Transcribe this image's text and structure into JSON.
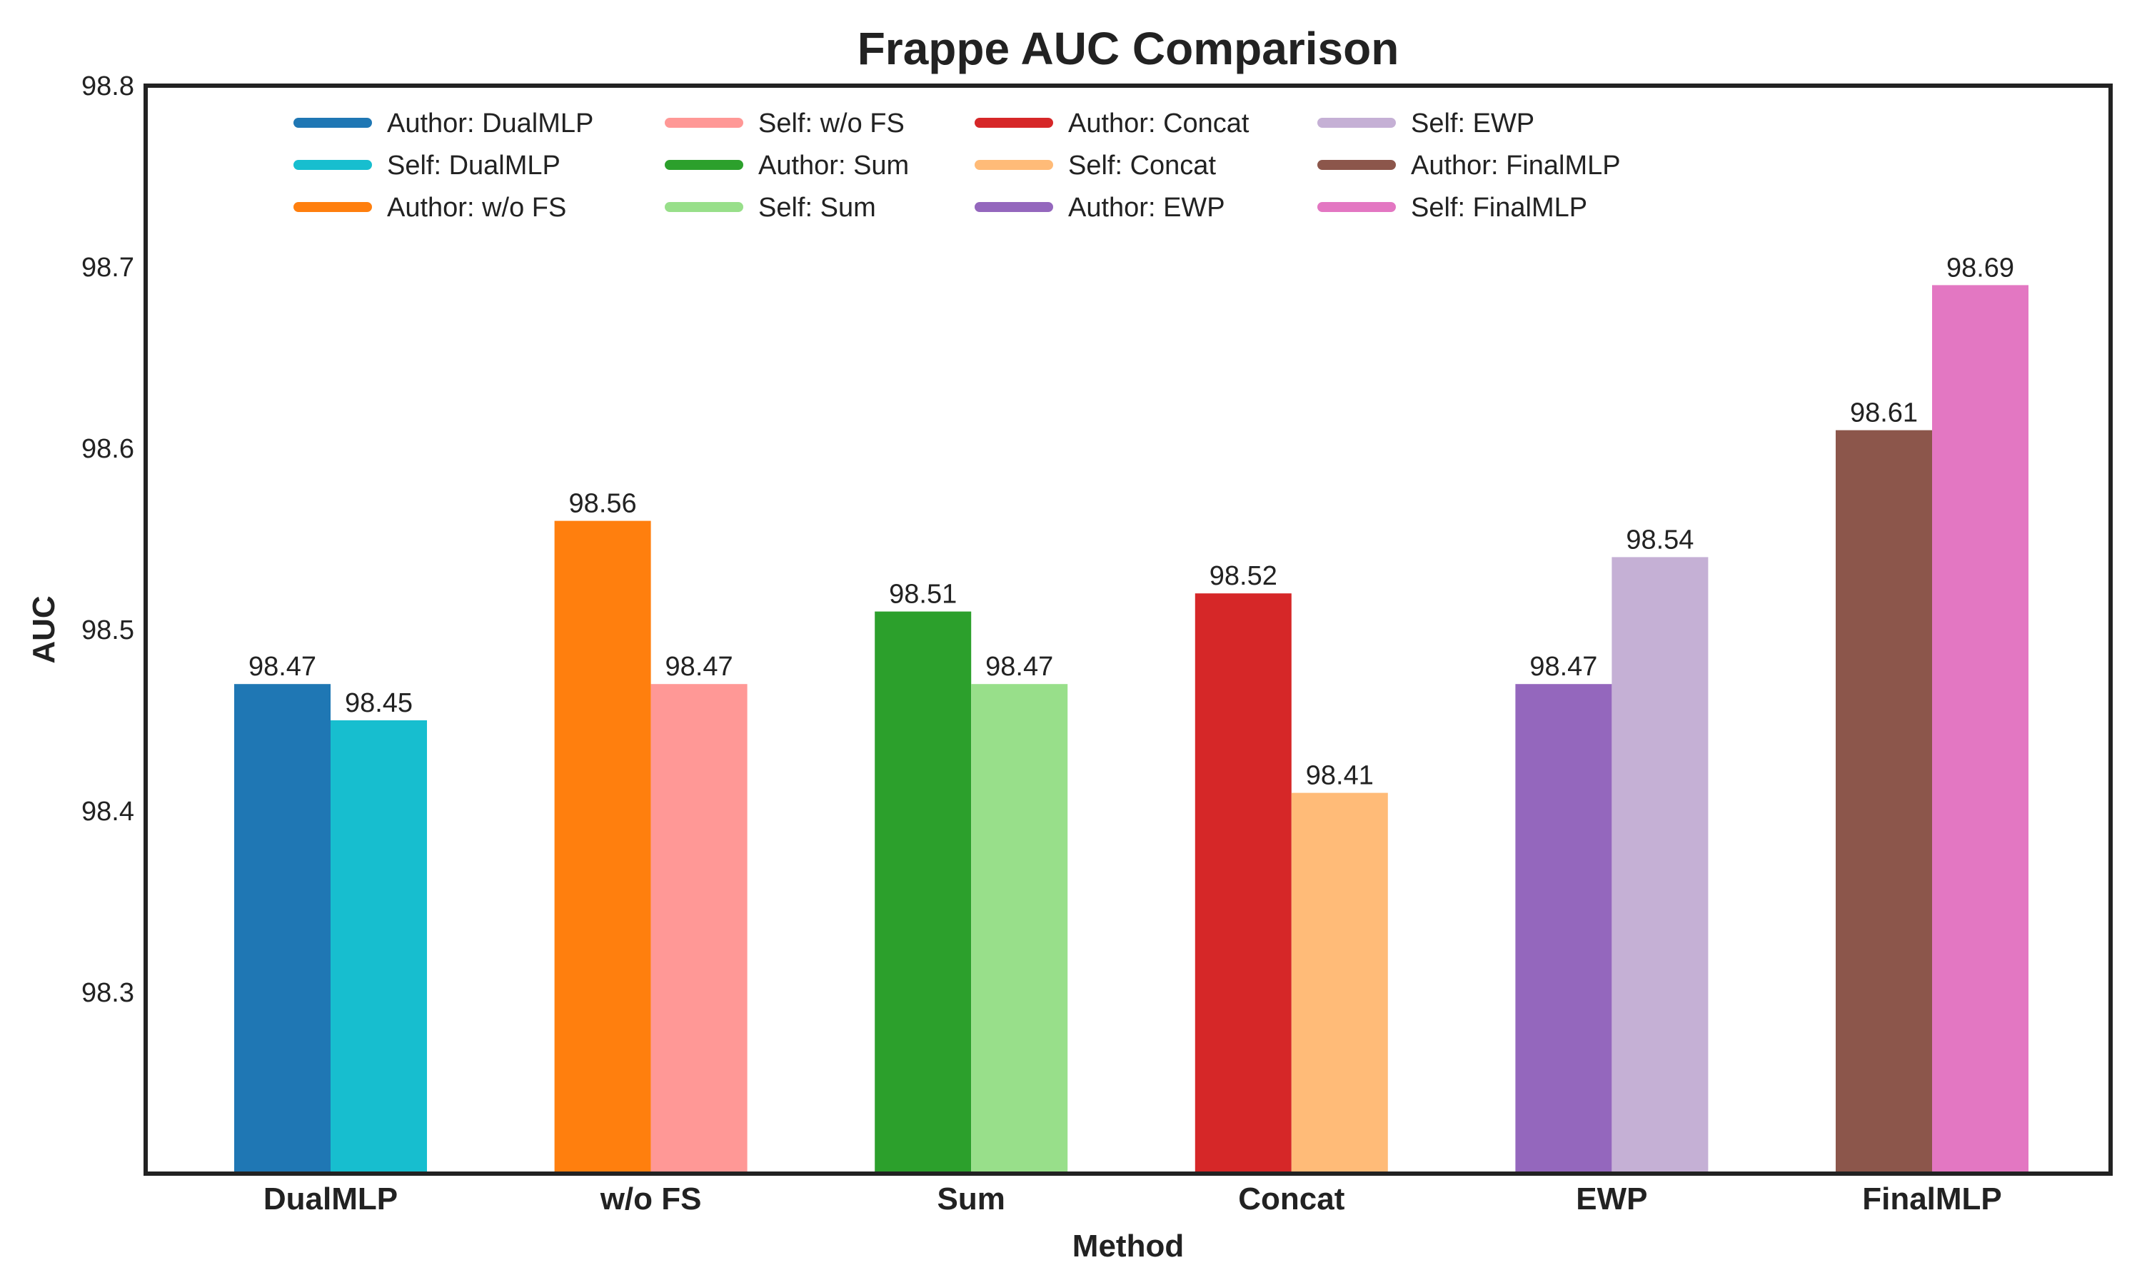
{
  "chart_data": {
    "type": "bar",
    "title": "Frappe AUC Comparison",
    "xlabel": "Method",
    "ylabel": "AUC",
    "ylim": [
      98.2,
      98.8
    ],
    "yticks": [
      "98.3",
      "98.4",
      "98.5",
      "98.6",
      "98.7",
      "98.8"
    ],
    "grid": false,
    "legend_position": "top",
    "categories": [
      "DualMLP",
      "w/o FS",
      "Sum",
      "Concat",
      "EWP",
      "FinalMLP"
    ],
    "groups": [
      {
        "category": "DualMLP",
        "bars": [
          {
            "name": "Author: DualMLP",
            "value": 98.47,
            "label": "98.47",
            "color": "#1f77b4"
          },
          {
            "name": "Self: DualMLP",
            "value": 98.45,
            "label": "98.45",
            "color": "#17becf"
          }
        ]
      },
      {
        "category": "w/o FS",
        "bars": [
          {
            "name": "Author: w/o FS",
            "value": 98.56,
            "label": "98.56",
            "color": "#ff7f0e"
          },
          {
            "name": "Self: w/o FS",
            "value": 98.47,
            "label": "98.47",
            "color": "#ff9896"
          }
        ]
      },
      {
        "category": "Sum",
        "bars": [
          {
            "name": "Author: Sum",
            "value": 98.51,
            "label": "98.51",
            "color": "#2ca02c"
          },
          {
            "name": "Self: Sum",
            "value": 98.47,
            "label": "98.47",
            "color": "#98df8a"
          }
        ]
      },
      {
        "category": "Concat",
        "bars": [
          {
            "name": "Author: Concat",
            "value": 98.52,
            "label": "98.52",
            "color": "#d62728"
          },
          {
            "name": "Self: Concat",
            "value": 98.41,
            "label": "98.41",
            "color": "#ffbb78"
          }
        ]
      },
      {
        "category": "EWP",
        "bars": [
          {
            "name": "Author: EWP",
            "value": 98.47,
            "label": "98.47",
            "color": "#9467bd"
          },
          {
            "name": "Self: EWP",
            "value": 98.54,
            "label": "98.54",
            "color": "#c5b0d5"
          }
        ]
      },
      {
        "category": "FinalMLP",
        "bars": [
          {
            "name": "Author: FinalMLP",
            "value": 98.61,
            "label": "98.61",
            "color": "#8c564b"
          },
          {
            "name": "Self: FinalMLP",
            "value": 98.69,
            "label": "98.69",
            "color": "#e377c2"
          }
        ]
      }
    ],
    "legend": [
      {
        "label": "Author: DualMLP",
        "color": "#1f77b4"
      },
      {
        "label": "Self: DualMLP",
        "color": "#17becf"
      },
      {
        "label": "Author: w/o FS",
        "color": "#ff7f0e"
      },
      {
        "label": "Self: w/o FS",
        "color": "#ff9896"
      },
      {
        "label": "Author: Sum",
        "color": "#2ca02c"
      },
      {
        "label": "Self: Sum",
        "color": "#98df8a"
      },
      {
        "label": "Author: Concat",
        "color": "#d62728"
      },
      {
        "label": "Self: Concat",
        "color": "#ffbb78"
      },
      {
        "label": "Author: EWP",
        "color": "#9467bd"
      },
      {
        "label": "Self: EWP",
        "color": "#c5b0d5"
      },
      {
        "label": "Author: FinalMLP",
        "color": "#8c564b"
      },
      {
        "label": "Self: FinalMLP",
        "color": "#e377c2"
      }
    ]
  }
}
